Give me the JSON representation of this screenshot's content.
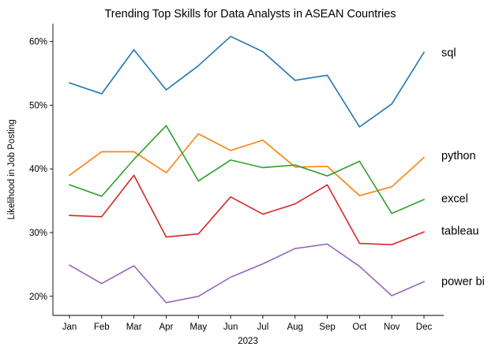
{
  "chart_data": {
    "type": "line",
    "title": "Trending Top Skills for Data Analysts in ASEAN Countries",
    "xlabel": "2023",
    "ylabel": "Likelihood in Job Posting",
    "categories": [
      "Jan",
      "Feb",
      "Mar",
      "Apr",
      "May",
      "Jun",
      "Jul",
      "Aug",
      "Sep",
      "Oct",
      "Nov",
      "Dec"
    ],
    "yticks": [
      20,
      30,
      40,
      50,
      60
    ],
    "ytick_labels": [
      "20%",
      "30%",
      "40%",
      "50%",
      "60%"
    ],
    "ylim": [
      17.0,
      62.8
    ],
    "grid": false,
    "legend": "direct labels at right end of each line",
    "series": [
      {
        "name": "sql",
        "color": "#1f77b4",
        "values": [
          53.5,
          51.8,
          58.7,
          52.4,
          56.2,
          60.8,
          58.4,
          53.9,
          54.7,
          46.6,
          50.2,
          58.3
        ]
      },
      {
        "name": "python",
        "color": "#ff7f0e",
        "values": [
          39.0,
          42.7,
          42.7,
          39.4,
          45.5,
          42.9,
          44.5,
          40.3,
          40.4,
          35.8,
          37.2,
          41.8
        ]
      },
      {
        "name": "excel",
        "color": "#2ca02c",
        "values": [
          37.5,
          35.7,
          41.5,
          46.8,
          38.1,
          41.4,
          40.2,
          40.6,
          38.9,
          41.2,
          33.0,
          35.2
        ]
      },
      {
        "name": "tableau",
        "color": "#d62728",
        "values": [
          32.7,
          32.5,
          39.0,
          29.3,
          29.8,
          35.6,
          32.9,
          34.5,
          37.5,
          28.3,
          28.1,
          30.1
        ]
      },
      {
        "name": "power bi",
        "color": "#9467bd",
        "values": [
          24.9,
          22.0,
          24.8,
          19.0,
          20.0,
          23.0,
          25.1,
          27.5,
          28.2,
          24.7,
          20.1,
          22.3
        ]
      }
    ],
    "line_labels": [
      {
        "text": "sql",
        "value": 58.3
      },
      {
        "text": "python",
        "value": 42.1
      },
      {
        "text": "excel",
        "value": 35.4
      },
      {
        "text": "tableau",
        "value": 30.3
      },
      {
        "text": "power bi",
        "value": 22.4
      }
    ]
  }
}
